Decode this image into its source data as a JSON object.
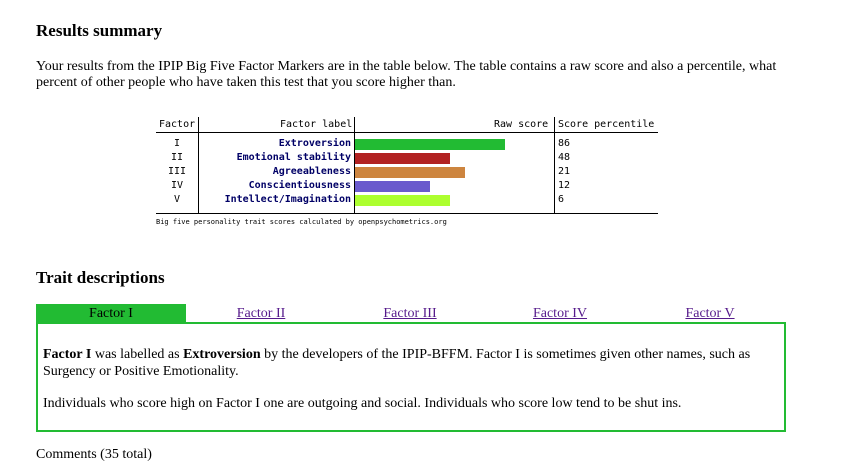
{
  "summary_heading": "Results summary",
  "intro": "Your results from the IPIP Big Five Factor Markers are in the table below. The table contains a raw score and also a percentile, what percent of other people who have taken this test that you score higher than.",
  "table": {
    "headers": {
      "factor": "Factor",
      "label": "Factor label",
      "raw": "Raw score",
      "percentile": "Score percentile"
    },
    "rows": [
      {
        "num": "I",
        "label": "Extroversion",
        "raw_fraction": 0.75,
        "percentile": "86",
        "color": "#22bb33"
      },
      {
        "num": "II",
        "label": "Emotional stability",
        "raw_fraction": 0.475,
        "percentile": "48",
        "color": "#b22222"
      },
      {
        "num": "III",
        "label": "Agreeableness",
        "raw_fraction": 0.55,
        "percentile": "21",
        "color": "#cd853f"
      },
      {
        "num": "IV",
        "label": "Conscientiousness",
        "raw_fraction": 0.375,
        "percentile": "12",
        "color": "#6a5acd"
      },
      {
        "num": "V",
        "label": "Intellect/Imagination",
        "raw_fraction": 0.475,
        "percentile": "6",
        "color": "#adff2f"
      }
    ],
    "credit": "Big five personality trait scores calculated by openpsychometrics.org"
  },
  "trait_heading": "Trait descriptions",
  "tabs": [
    "Factor I",
    "Factor II",
    "Factor III",
    "Factor IV",
    "Factor V"
  ],
  "active_tab_color": "#22bb33",
  "description": {
    "p1_bold1": "Factor I",
    "p1_text1": " was labelled as ",
    "p1_bold2": "Extroversion",
    "p1_text2": " by the developers of the IPIP-BFFM. Factor I is sometimes given other names, such as Surgency or Positive Emotionality.",
    "p2": "Individuals who score high on Factor I one are outgoing and social. Individuals who score low tend to be shut ins."
  },
  "cutoff_text": "Comments (35 total)"
}
